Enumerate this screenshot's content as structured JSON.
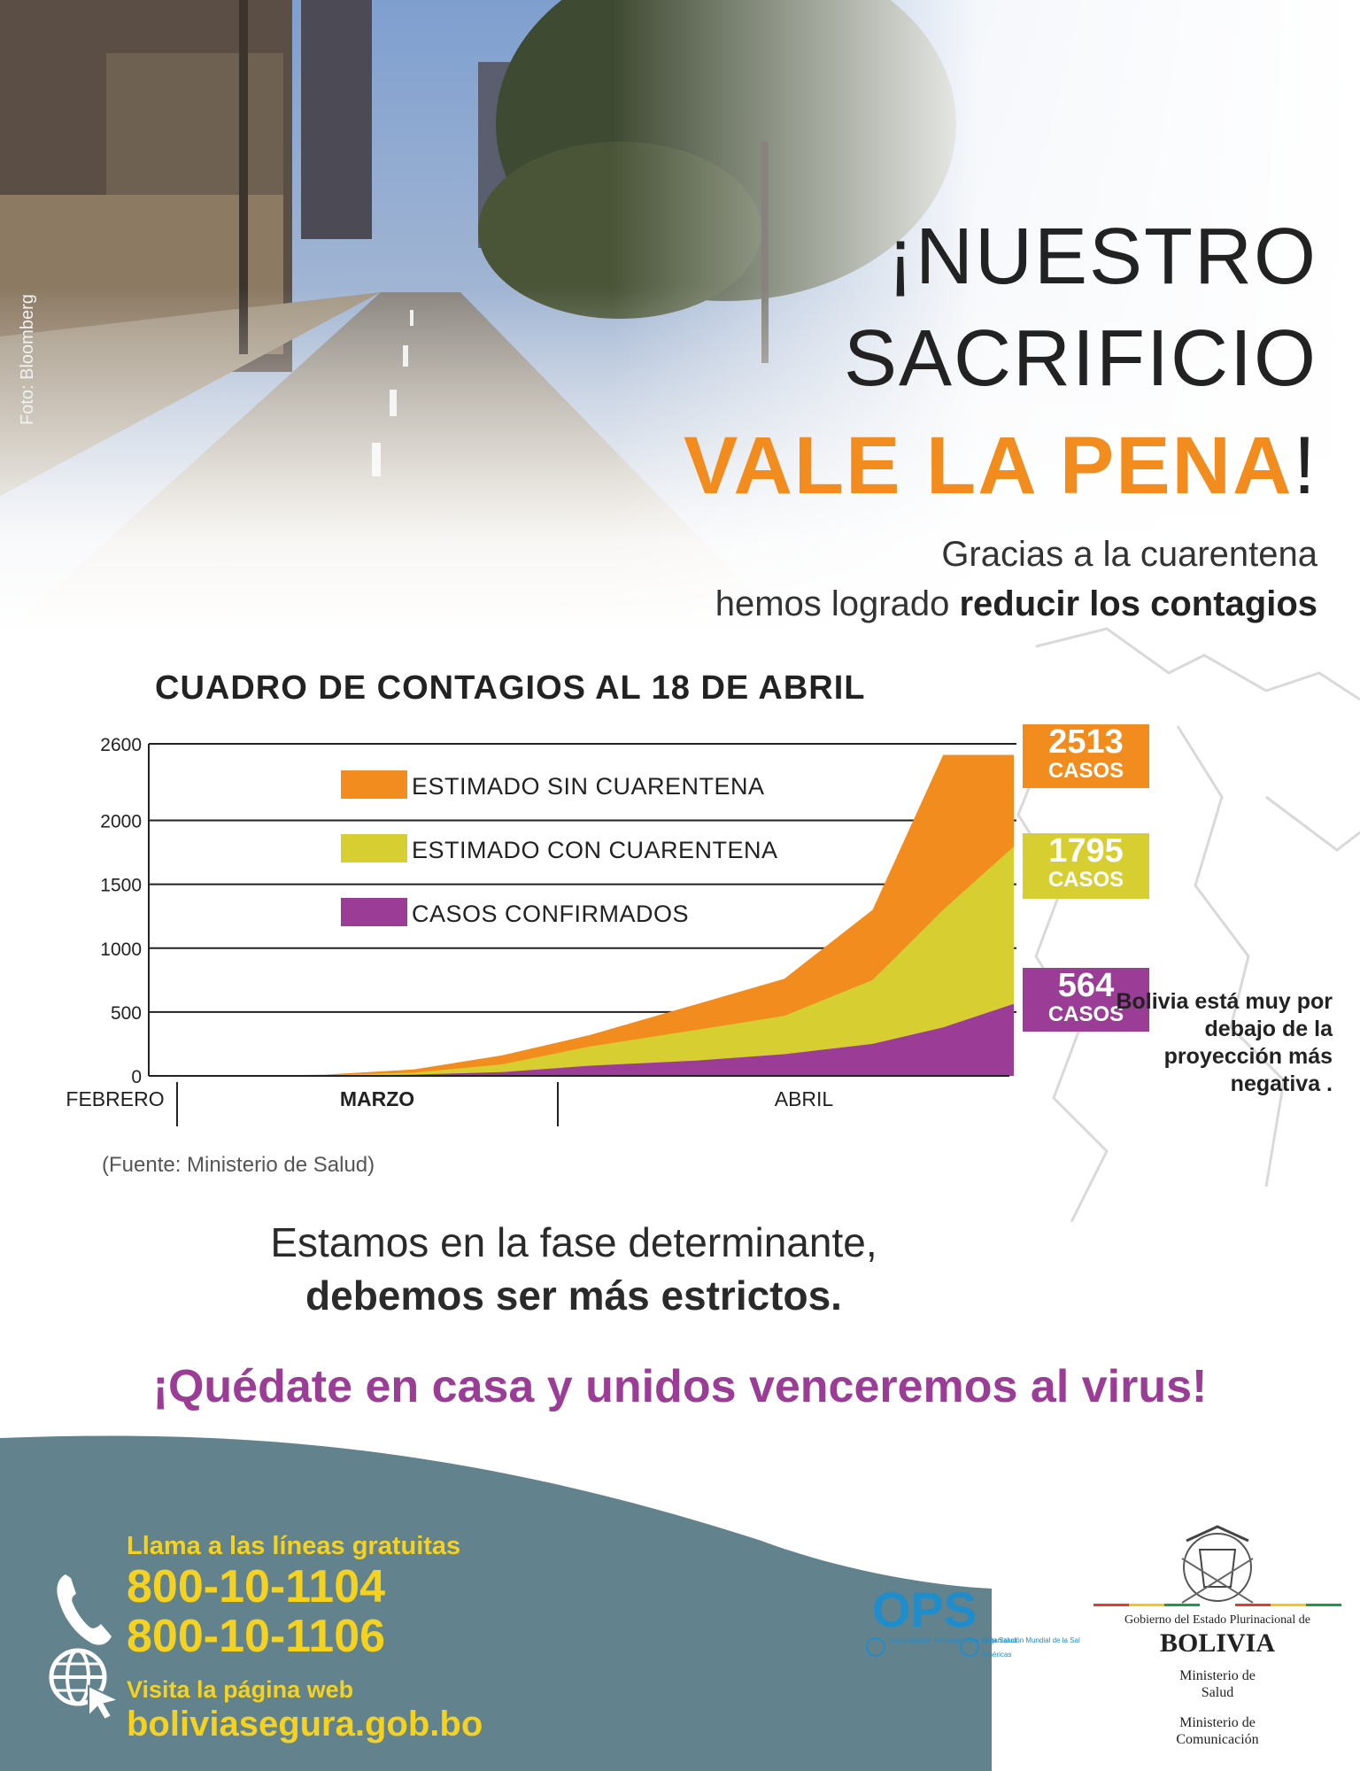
{
  "photo": {
    "credit": "Foto: Bloomberg"
  },
  "headline": {
    "line1": "¡NUESTRO",
    "line2": "SACRIFICIO",
    "line3": "VALE LA PENA",
    "line3_end": "!",
    "sub1": "Gracias a la cuarentena",
    "sub2_plain": "hemos logrado ",
    "sub2_bold": "reducir los contagios"
  },
  "chart_data": {
    "type": "area",
    "title": "CUADRO DE CONTAGIOS AL 18 DE ABRIL",
    "y_ticks": [
      "2600",
      "2000",
      "1500",
      "1000",
      "500",
      "0"
    ],
    "ylim": [
      0,
      2600
    ],
    "x_labels": [
      "FEBRERO",
      "MARZO",
      "ABRIL"
    ],
    "grid": true,
    "legend_position": "top-left",
    "x": [
      "2020-02-29",
      "2020-03-05",
      "2020-03-10",
      "2020-03-15",
      "2020-03-20",
      "2020-03-25",
      "2020-03-31",
      "2020-04-05",
      "2020-04-10",
      "2020-04-14",
      "2020-04-18"
    ],
    "series": [
      {
        "name": "ESTIMADO SIN CUARENTENA",
        "color": "#f28c1e",
        "values": [
          0,
          0,
          10,
          50,
          160,
          320,
          560,
          760,
          1300,
          2513,
          2513
        ]
      },
      {
        "name": "ESTIMADO CON CUARENTENA",
        "color": "#d7cf32",
        "values": [
          0,
          0,
          5,
          25,
          90,
          230,
          360,
          470,
          750,
          1300,
          1795
        ]
      },
      {
        "name": "CASOS CONFIRMADOS",
        "color": "#9b3d97",
        "values": [
          0,
          0,
          0,
          10,
          30,
          80,
          120,
          170,
          250,
          380,
          564
        ]
      }
    ],
    "callouts": [
      {
        "value": "2513",
        "unit": "CASOS",
        "color": "#f28c1e"
      },
      {
        "value": "1795",
        "unit": "CASOS",
        "color": "#d7cf32"
      },
      {
        "value": "564",
        "unit": "CASOS",
        "color": "#9b3d97"
      }
    ],
    "note": "Bolivia está muy por debajo de la proyección más negativa .",
    "source": "(Fuente: Ministerio de Salud)"
  },
  "messages": {
    "line1": "Estamos en la fase determinante,",
    "line2": "debemos ser más estrictos.",
    "slogan": "¡Quédate en casa y unidos venceremos al virus!"
  },
  "footer": {
    "hotline_label": "Llama a las líneas gratuitas",
    "phone1": "800-10-1104",
    "phone2": "800-10-1106",
    "web_label": "Visita la página web",
    "web_url": "boliviasegura.gob.bo",
    "ops_logo": "OPS",
    "ops_org1": "Organización Panamericana de la Salud",
    "ops_org2": "Organización Mundial de la Salud",
    "ops_org2_sub": "Américas",
    "gov_line": "Gobierno del Estado Plurinacional de",
    "gov_country": "BOLIVIA",
    "ministry1_a": "Ministerio de",
    "ministry1_b": "Salud",
    "ministry2_a": "Ministerio de",
    "ministry2_b": "Comunicación",
    "colors": {
      "panel": "#62838d",
      "text": "#f4d21f"
    }
  }
}
